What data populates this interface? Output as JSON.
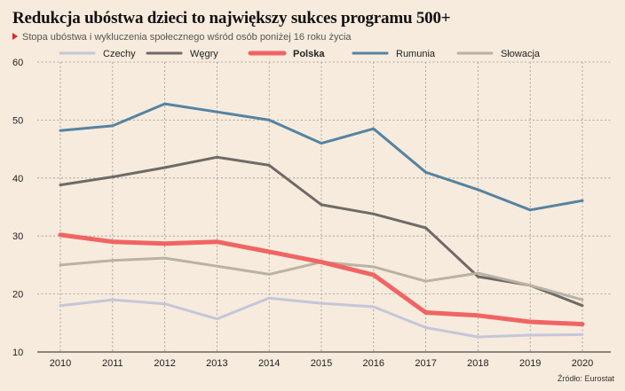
{
  "chart_data": {
    "type": "line",
    "title": "Redukcja ubóstwa dzieci to największy sukces programu 500+",
    "subtitle": "Stopa ubóstwa i wykluczenia społecznego wśród osób poniżej 16 roku życia",
    "source": "Źródło: Eurostat",
    "x": [
      2010,
      2011,
      2012,
      2013,
      2014,
      2015,
      2016,
      2017,
      2018,
      2019,
      2020
    ],
    "ylim": [
      10,
      60
    ],
    "yticks": [
      10,
      20,
      30,
      40,
      50,
      60
    ],
    "grid": true,
    "legend_position": "top",
    "series": [
      {
        "name": "Czechy",
        "color": "#c5c6d8",
        "emphasis": false,
        "values": [
          18.0,
          19.0,
          18.3,
          15.7,
          19.3,
          18.4,
          17.8,
          14.2,
          12.6,
          12.9,
          13.0
        ]
      },
      {
        "name": "Węgry",
        "color": "#6d6a68",
        "emphasis": false,
        "values": [
          38.8,
          40.2,
          41.8,
          43.6,
          42.2,
          35.4,
          33.8,
          31.4,
          23.0,
          21.5,
          18.0
        ]
      },
      {
        "name": "Polska",
        "color": "#f06464",
        "emphasis": true,
        "values": [
          30.2,
          29.0,
          28.7,
          29.0,
          27.3,
          25.5,
          23.3,
          16.8,
          16.3,
          15.2,
          14.8
        ]
      },
      {
        "name": "Rumunia",
        "color": "#5583a2",
        "emphasis": false,
        "values": [
          48.2,
          49.0,
          52.8,
          51.4,
          50.0,
          46.0,
          48.5,
          41.0,
          38.0,
          34.5,
          36.1
        ]
      },
      {
        "name": "Słowacja",
        "color": "#b9b2a5",
        "emphasis": false,
        "values": [
          25.0,
          25.8,
          26.2,
          24.8,
          23.4,
          25.5,
          24.7,
          22.2,
          23.6,
          21.5,
          19.0
        ]
      }
    ]
  }
}
